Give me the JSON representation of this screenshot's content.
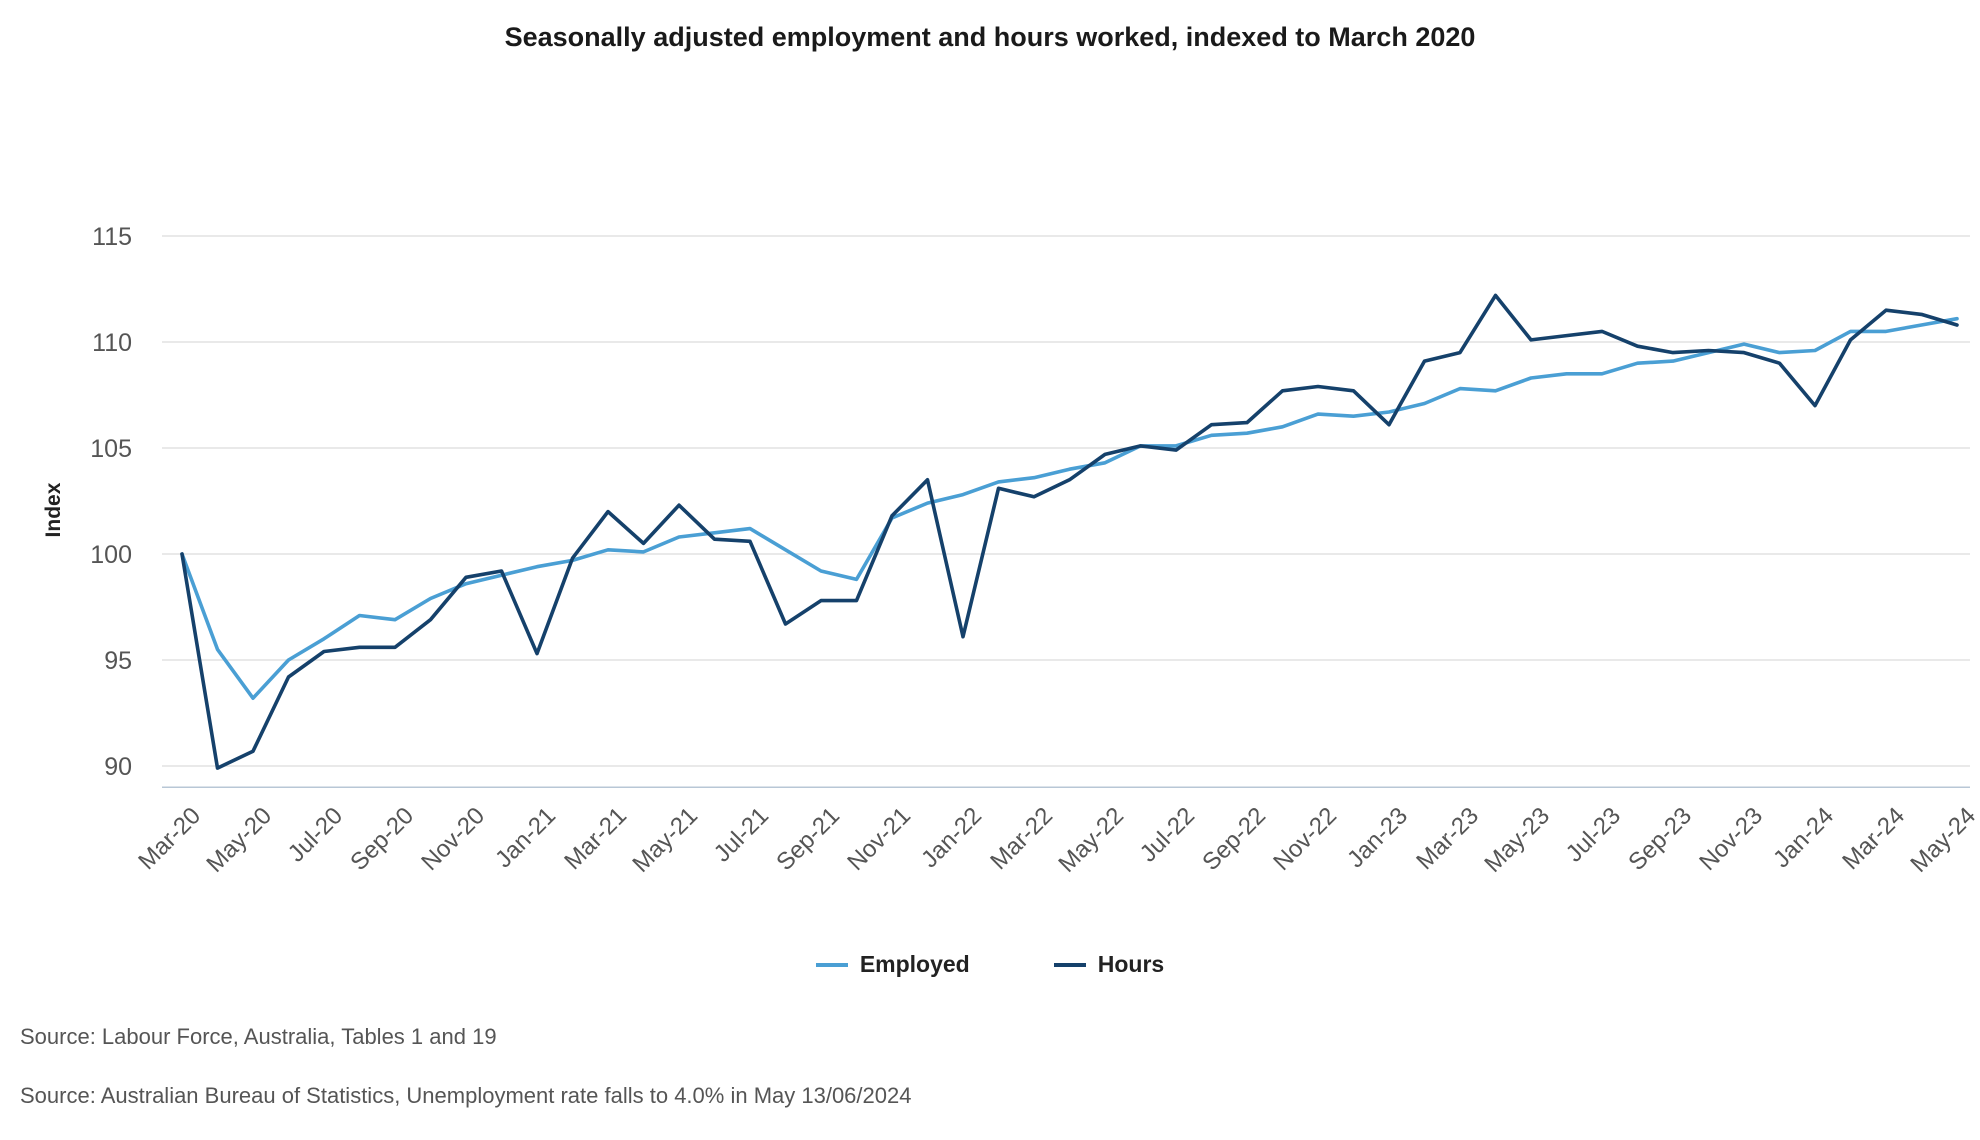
{
  "chart_data": {
    "type": "line",
    "title": "Seasonally adjusted employment and hours worked, indexed to March 2020",
    "xlabel": "",
    "ylabel": "Index",
    "ylim": [
      89,
      115
    ],
    "y_ticks": [
      90,
      95,
      100,
      105,
      110,
      115
    ],
    "x_tick_labels": [
      "Mar-20",
      "May-20",
      "Jul-20",
      "Sep-20",
      "Nov-20",
      "Jan-21",
      "Mar-21",
      "May-21",
      "Jul-21",
      "Sep-21",
      "Nov-21",
      "Jan-22",
      "Mar-22",
      "May-22",
      "Jul-22",
      "Sep-22",
      "Nov-22",
      "Jan-23",
      "Mar-23",
      "May-23",
      "Jul-23",
      "Sep-23",
      "Nov-23",
      "Jan-24",
      "Mar-24",
      "May-24"
    ],
    "categories": [
      "Mar-20",
      "Apr-20",
      "May-20",
      "Jun-20",
      "Jul-20",
      "Aug-20",
      "Sep-20",
      "Oct-20",
      "Nov-20",
      "Dec-20",
      "Jan-21",
      "Feb-21",
      "Mar-21",
      "Apr-21",
      "May-21",
      "Jun-21",
      "Jul-21",
      "Aug-21",
      "Sep-21",
      "Oct-21",
      "Nov-21",
      "Dec-21",
      "Jan-22",
      "Feb-22",
      "Mar-22",
      "Apr-22",
      "May-22",
      "Jun-22",
      "Jul-22",
      "Aug-22",
      "Sep-22",
      "Oct-22",
      "Nov-22",
      "Dec-22",
      "Jan-23",
      "Feb-23",
      "Mar-23",
      "Apr-23",
      "May-23",
      "Jun-23",
      "Jul-23",
      "Aug-23",
      "Sep-23",
      "Oct-23",
      "Nov-23",
      "Dec-23",
      "Jan-24",
      "Feb-24",
      "Mar-24",
      "Apr-24",
      "May-24"
    ],
    "series": [
      {
        "name": "Employed",
        "color": "#4a9fd4",
        "values": [
          100.0,
          95.5,
          93.2,
          95.0,
          96.0,
          97.1,
          96.9,
          97.9,
          98.6,
          99.0,
          99.4,
          99.7,
          100.2,
          100.1,
          100.8,
          101.0,
          101.2,
          100.2,
          99.2,
          98.8,
          101.7,
          102.4,
          102.8,
          103.4,
          103.6,
          104.0,
          104.3,
          105.1,
          105.1,
          105.6,
          105.7,
          106.0,
          106.6,
          106.5,
          106.7,
          107.1,
          107.8,
          107.7,
          108.3,
          108.5,
          108.5,
          109.0,
          109.1,
          109.5,
          109.9,
          109.5,
          109.6,
          110.5,
          110.5,
          110.8,
          111.1
        ]
      },
      {
        "name": "Hours",
        "color": "#15416b",
        "values": [
          100.0,
          89.9,
          90.7,
          94.2,
          95.4,
          95.6,
          95.6,
          96.9,
          98.9,
          99.2,
          95.3,
          99.8,
          102.0,
          100.5,
          102.3,
          100.7,
          100.6,
          96.7,
          97.8,
          97.8,
          101.8,
          103.5,
          96.1,
          103.1,
          102.7,
          103.5,
          104.7,
          105.1,
          104.9,
          106.1,
          106.2,
          107.7,
          107.9,
          107.7,
          106.1,
          109.1,
          109.5,
          112.2,
          110.1,
          110.3,
          110.5,
          109.8,
          109.5,
          109.6,
          109.5,
          109.0,
          107.0,
          110.1,
          111.5,
          111.3,
          110.8
        ]
      }
    ],
    "legend_position": "bottom-center",
    "grid": true
  },
  "sources": {
    "line1": "Source: Labour Force, Australia, Tables 1 and 19",
    "line2": "Source: Australian Bureau of Statistics, Unemployment rate falls to 4.0% in May 13/06/2024"
  }
}
